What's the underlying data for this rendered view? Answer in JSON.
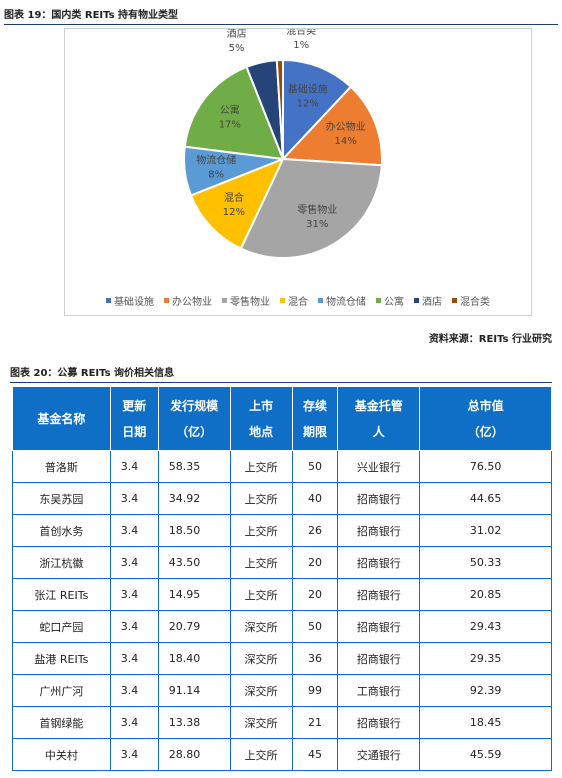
{
  "figure19": {
    "title": "图表 19：国内类 REITs 持有物业类型",
    "source": "资料来源：REITs 行业研究"
  },
  "chart_data": {
    "type": "pie",
    "slices": [
      {
        "name": "基础设施",
        "value": 12,
        "label": "12%",
        "color": "#4472c4"
      },
      {
        "name": "办公物业",
        "value": 14,
        "label": "14%",
        "color": "#ed7d31"
      },
      {
        "name": "零售物业",
        "value": 31,
        "label": "31%",
        "color": "#a5a5a5"
      },
      {
        "name": "混合",
        "value": 12,
        "label": "12%",
        "color": "#ffc000"
      },
      {
        "name": "物流仓储",
        "value": 8,
        "label": "8%",
        "color": "#5b9bd5"
      },
      {
        "name": "公寓",
        "value": 17,
        "label": "17%",
        "color": "#70ad47"
      },
      {
        "name": "酒店",
        "value": 5,
        "label": "5%",
        "color": "#264478"
      },
      {
        "name": "混合类",
        "value": 1,
        "label": "1%",
        "color": "#9e480e"
      }
    ],
    "legend_position": "bottom"
  },
  "table20": {
    "title": "图表 20：公募 REITs 询价相关信息",
    "headers": [
      [
        "基金名称"
      ],
      [
        "更新",
        "日期"
      ],
      [
        "发行规模",
        "（亿）"
      ],
      [
        "上市",
        "地点"
      ],
      [
        "存续",
        "期限"
      ],
      [
        "基金托管",
        "人"
      ],
      [
        "总市值",
        "（亿）"
      ]
    ],
    "rows": [
      [
        "普洛斯",
        "3.4",
        "58.35",
        "上交所",
        "50",
        "兴业银行",
        "76.50"
      ],
      [
        "东吴苏园",
        "3.4",
        "34.92",
        "上交所",
        "40",
        "招商银行",
        "44.65"
      ],
      [
        "首创水务",
        "3.4",
        "18.50",
        "上交所",
        "26",
        "招商银行",
        "31.02"
      ],
      [
        "浙江杭徽",
        "3.4",
        "43.50",
        "上交所",
        "20",
        "招商银行",
        "50.33"
      ],
      [
        "张江 REITs",
        "3.4",
        "14.95",
        "上交所",
        "20",
        "招商银行",
        "20.85"
      ],
      [
        "蛇口产园",
        "3.4",
        "20.79",
        "深交所",
        "50",
        "招商银行",
        "29.43"
      ],
      [
        "盐港 REITs",
        "3.4",
        "18.40",
        "深交所",
        "36",
        "招商银行",
        "29.35"
      ],
      [
        "广州广河",
        "3.4",
        "91.14",
        "深交所",
        "99",
        "工商银行",
        "92.39"
      ],
      [
        "首钢绿能",
        "3.4",
        "13.38",
        "深交所",
        "21",
        "招商银行",
        "18.45"
      ],
      [
        "中关村",
        "3.4",
        "28.80",
        "上交所",
        "45",
        "交通银行",
        "45.59"
      ]
    ]
  }
}
